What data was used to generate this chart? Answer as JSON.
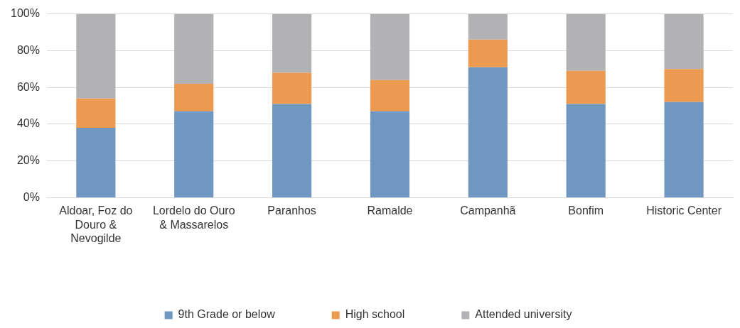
{
  "chart_data": {
    "type": "bar",
    "stacked": true,
    "categories": [
      "Aldoar, Foz do Douro & Nevogilde",
      "Lordelo do Ouro & Massarelos",
      "Paranhos",
      "Ramalde",
      "Campanhã",
      "Bonfim",
      "Historic Center"
    ],
    "series": [
      {
        "name": "9th Grade or below",
        "color": "#7096c2",
        "values": [
          38,
          47,
          51,
          47,
          71,
          51,
          52
        ]
      },
      {
        "name": "High school",
        "color": "#eb9a50",
        "values": [
          16,
          15,
          17,
          17,
          15,
          18,
          18
        ]
      },
      {
        "name": "Attended university",
        "color": "#b2b2b5",
        "values": [
          46,
          38,
          32,
          36,
          14,
          31,
          30
        ]
      }
    ],
    "ylim": [
      0,
      100
    ],
    "yticks": [
      {
        "value": 0,
        "label": "0%"
      },
      {
        "value": 20,
        "label": "20%"
      },
      {
        "value": 40,
        "label": "40%"
      },
      {
        "value": 60,
        "label": "60%"
      },
      {
        "value": 80,
        "label": "80%"
      },
      {
        "value": 100,
        "label": "100%"
      }
    ],
    "grid": "y",
    "legend": "bottom"
  }
}
